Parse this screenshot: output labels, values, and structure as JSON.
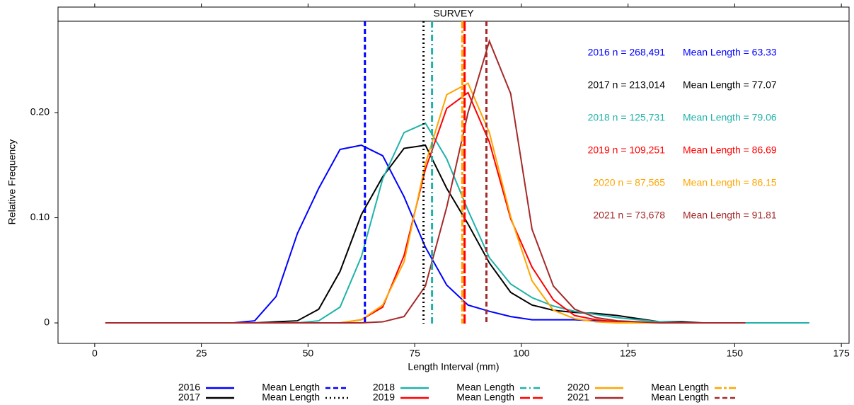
{
  "chart_data": {
    "type": "line",
    "strip_label": "SURVEY",
    "xlabel": "Length Interval (mm)",
    "ylabel": "Relative Frequency",
    "xlim": [
      -8.6,
      176.8
    ],
    "xticks": [
      0,
      25,
      50,
      75,
      100,
      125,
      150,
      175
    ],
    "ylim": [
      -0.0195,
      0.2869
    ],
    "yticks": [
      0,
      {
        "value": 0.1,
        "label": "0.10"
      },
      {
        "value": 0.2,
        "label": "0.20"
      }
    ],
    "mean_legend_label": "Mean Length",
    "x": [
      2.5,
      7.5,
      12.5,
      17.5,
      22.5,
      27.5,
      32.5,
      37.5,
      42.5,
      47.5,
      52.5,
      57.5,
      62.5,
      67.5,
      72.5,
      77.5,
      82.5,
      87.5,
      92.5,
      97.5,
      102.5,
      107.5,
      112.5,
      117.5,
      122.5,
      127.5,
      132.5,
      137.5,
      142.5,
      147.5,
      152.5,
      157.5,
      162.5,
      167.5
    ],
    "series": [
      {
        "name": "2016",
        "color": "#0000ff",
        "mean_linetype": "dashed",
        "n_label": "2016 n = 268,491",
        "mean": 63.33,
        "mean_label": "Mean Length = 63.33",
        "values": [
          0,
          0,
          0,
          0,
          0,
          0,
          0,
          0.002,
          0.025,
          0.085,
          0.128,
          0.165,
          0.169,
          0.159,
          0.12,
          0.072,
          0.036,
          0.017,
          0.011,
          0.006,
          0.003,
          0.003,
          0.003,
          0.002,
          0.001,
          0,
          0,
          0,
          0,
          0,
          0,
          null,
          null,
          null
        ]
      },
      {
        "name": "2017",
        "color": "#000000",
        "mean_linetype": "dotted",
        "n_label": "2017 n = 213,014",
        "mean": 77.07,
        "mean_label": "Mean Length = 77.07",
        "values": [
          0,
          0,
          0,
          0,
          0,
          0,
          0,
          0,
          0.001,
          0.002,
          0.013,
          0.049,
          0.103,
          0.139,
          0.166,
          0.169,
          0.128,
          0.094,
          0.057,
          0.029,
          0.017,
          0.012,
          0.01,
          0.009,
          0.007,
          0.004,
          0.001,
          0.001,
          0,
          0,
          0,
          null,
          null,
          null
        ]
      },
      {
        "name": "2018",
        "color": "#20b2aa",
        "mean_linetype": "dotdash",
        "n_label": "2018 n = 125,731",
        "mean": 79.06,
        "mean_label": "Mean Length = 79.06",
        "values": [
          0,
          0,
          0,
          0,
          0,
          0,
          0,
          0,
          0,
          0,
          0.002,
          0.015,
          0.063,
          0.137,
          0.181,
          0.19,
          0.156,
          0.107,
          0.062,
          0.037,
          0.024,
          0.016,
          0.011,
          0.008,
          0.005,
          0.003,
          0.001,
          0,
          0,
          0,
          0,
          0,
          0,
          0
        ]
      },
      {
        "name": "2019",
        "color": "#ff0000",
        "mean_linetype": "longdash",
        "n_label": "2019 n = 109,251",
        "mean": 86.69,
        "mean_label": "Mean Length = 86.69",
        "values": [
          0,
          0,
          0,
          0,
          0,
          0,
          0,
          0,
          0,
          0,
          0,
          0,
          0.003,
          0.015,
          0.064,
          0.146,
          0.204,
          0.219,
          0.172,
          0.099,
          0.053,
          0.022,
          0.007,
          0.003,
          0.001,
          0,
          0,
          0,
          0,
          0,
          0,
          null,
          null,
          null
        ]
      },
      {
        "name": "2020",
        "color": "#ffa500",
        "mean_linetype": "twodash",
        "n_label": "2020 n = 87,565",
        "mean": 86.15,
        "mean_label": "Mean Length = 86.15",
        "values": [
          0,
          0,
          0,
          0,
          0,
          0,
          0,
          0,
          0,
          0,
          0,
          0,
          0.003,
          0.017,
          0.058,
          0.151,
          0.217,
          0.228,
          0.181,
          0.101,
          0.04,
          0.012,
          0.004,
          0.001,
          0,
          0,
          0,
          0,
          0,
          0,
          0,
          null,
          null,
          null
        ]
      },
      {
        "name": "2021",
        "color": "#a52a2a",
        "mean_linetype": "dashed",
        "n_label": "2021 n = 73,678",
        "mean": 91.81,
        "mean_label": "Mean Length = 91.81",
        "values": [
          0,
          0,
          0,
          0,
          0,
          0,
          0,
          0,
          0,
          0,
          0,
          0,
          0,
          0.001,
          0.006,
          0.035,
          0.11,
          0.2,
          0.268,
          0.218,
          0.089,
          0.035,
          0.013,
          0.005,
          0.002,
          0.001,
          0,
          0,
          0,
          0,
          0,
          null,
          null,
          null
        ]
      }
    ]
  }
}
